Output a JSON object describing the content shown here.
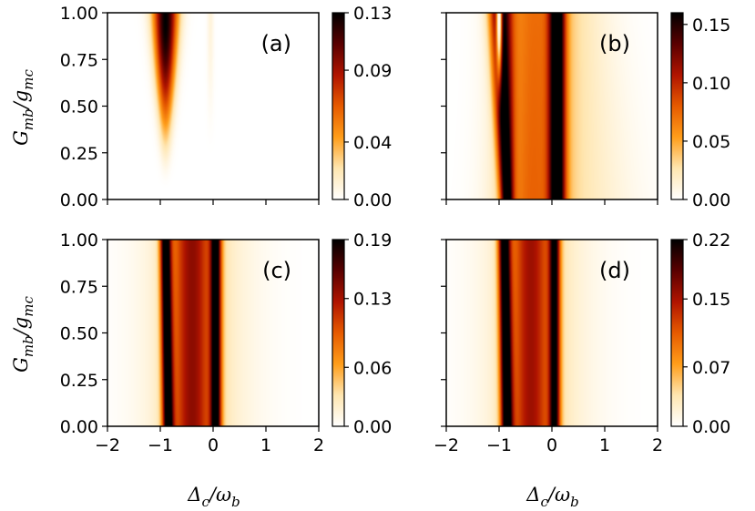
{
  "figure": {
    "ylabel": "G_mb/g_mc",
    "xlabel": "Δ_c/ω_b",
    "ylabel_main": "G",
    "ylabel_sub": "mb",
    "ylabel_mid": "/g",
    "ylabel_sub2": "mc",
    "xlabel_main": "Δ",
    "xlabel_sub": "c",
    "xlabel_mid": "/ω",
    "xlabel_sub2": "b"
  },
  "colormap": [
    "#ffffff",
    "#ffe6b0",
    "#ff9d1a",
    "#e65a00",
    "#b01400",
    "#5a0000",
    "#000000"
  ],
  "chart_data": [
    {
      "type": "heatmap",
      "panel_label": "(a)",
      "xlim": [
        -2,
        2
      ],
      "ylim": [
        0,
        1
      ],
      "xticks": [
        "−2",
        "−1",
        "0",
        "1",
        "2"
      ],
      "yticks": [
        "0.00",
        "0.25",
        "0.50",
        "0.75",
        "1.00"
      ],
      "colorbar_range": [
        0,
        0.13
      ],
      "colorbar_ticks": [
        "0.00",
        "0.04",
        "0.09",
        "0.13"
      ],
      "colorbar_tick_values": [
        0,
        0.04,
        0.09,
        0.13
      ],
      "peaks": [
        {
          "center": -0.9,
          "center_slope": 0.0,
          "width": 0.07,
          "width_slope": 0.16,
          "amp": 0.13,
          "y_onset": 0.05,
          "y_full": 0.95
        },
        {
          "center": -0.05,
          "center_slope": 0.0,
          "width": 0.06,
          "width_slope": 0.0,
          "amp": 0.01,
          "y_onset": 0.2,
          "y_full": 1.0
        }
      ]
    },
    {
      "type": "heatmap",
      "panel_label": "(b)",
      "xlim": [
        -2,
        2
      ],
      "ylim": [
        0,
        1
      ],
      "xticks": [
        "−2",
        "−1",
        "0",
        "1",
        "2"
      ],
      "yticks": [
        "0.00",
        "0.25",
        "0.50",
        "0.75",
        "1.00"
      ],
      "colorbar_range": [
        0,
        0.16
      ],
      "colorbar_ticks": [
        "0.00",
        "0.05",
        "0.10",
        "0.15"
      ],
      "colorbar_tick_values": [
        0,
        0.05,
        0.1,
        0.15
      ],
      "peaks": [
        {
          "center": -0.85,
          "center_slope": -0.12,
          "width": 0.12,
          "width_slope": 0.08,
          "amp": 0.15
        },
        {
          "center": 0.1,
          "center_slope": 0.0,
          "width": 0.15,
          "width_slope": 0.0,
          "amp": 0.15
        },
        {
          "center": -0.4,
          "center_slope": 0.0,
          "width": 0.6,
          "width_slope": 0.0,
          "amp": 0.06
        },
        {
          "center": 0.3,
          "center_slope": 0.0,
          "width": 1.1,
          "width_slope": -0.3,
          "amp": 0.025
        }
      ],
      "dip": {
        "center": -1.0,
        "width": 0.06,
        "y_onset": 0.4,
        "y_full": 0.95,
        "depth": 1.0
      }
    },
    {
      "type": "heatmap",
      "panel_label": "(c)",
      "xlim": [
        -2,
        2
      ],
      "ylim": [
        0,
        1
      ],
      "xticks": [
        "−2",
        "−1",
        "0",
        "1",
        "2"
      ],
      "yticks": [
        "0.00",
        "0.25",
        "0.50",
        "0.75",
        "1.00"
      ],
      "colorbar_range": [
        0,
        0.19
      ],
      "colorbar_ticks": [
        "0.00",
        "0.06",
        "0.13",
        "0.19"
      ],
      "colorbar_tick_values": [
        0,
        0.06,
        0.13,
        0.19
      ],
      "peaks": [
        {
          "center": -0.85,
          "center_slope": -0.05,
          "width": 0.1,
          "width_slope": 0.0,
          "amp": 0.19
        },
        {
          "center": 0.05,
          "center_slope": 0.0,
          "width": 0.1,
          "width_slope": 0.0,
          "amp": 0.17
        },
        {
          "center": -0.4,
          "center_slope": 0.0,
          "width": 0.4,
          "width_slope": 0.0,
          "amp": 0.11
        },
        {
          "center": -0.3,
          "center_slope": 0.0,
          "width": 1.0,
          "width_slope": 0.0,
          "amp": 0.03
        }
      ]
    },
    {
      "type": "heatmap",
      "panel_label": "(d)",
      "xlim": [
        -2,
        2
      ],
      "ylim": [
        0,
        1
      ],
      "xticks": [
        "−2",
        "−1",
        "0",
        "1",
        "2"
      ],
      "yticks": [
        "0.00",
        "0.25",
        "0.50",
        "0.75",
        "1.00"
      ],
      "colorbar_range": [
        0,
        0.22
      ],
      "colorbar_ticks": [
        "0.00",
        "0.07",
        "0.15",
        "0.22"
      ],
      "colorbar_tick_values": [
        0,
        0.07,
        0.15,
        0.22
      ],
      "peaks": [
        {
          "center": -0.85,
          "center_slope": -0.05,
          "width": 0.11,
          "width_slope": 0.0,
          "amp": 0.22
        },
        {
          "center": 0.05,
          "center_slope": 0.0,
          "width": 0.1,
          "width_slope": 0.0,
          "amp": 0.18
        },
        {
          "center": -0.4,
          "center_slope": 0.0,
          "width": 0.4,
          "width_slope": 0.0,
          "amp": 0.12
        },
        {
          "center": -0.3,
          "center_slope": 0.0,
          "width": 1.0,
          "width_slope": 0.0,
          "amp": 0.035
        }
      ]
    }
  ]
}
